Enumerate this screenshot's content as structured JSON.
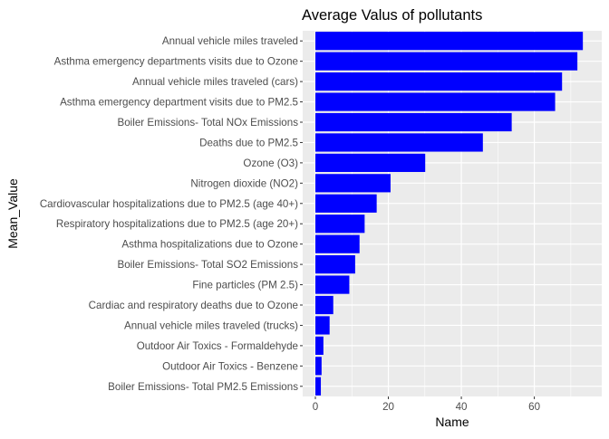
{
  "chart_data": {
    "type": "bar",
    "orientation": "horizontal",
    "title": "Average Valus of pollutants",
    "xlabel": "Name",
    "ylabel": "Mean_Value",
    "categories": [
      "Annual vehicle miles traveled",
      "Asthma emergency departments visits due to Ozone",
      "Annual vehicle miles traveled (cars)",
      "Asthma emergency department visits due to PM2.5",
      "Boiler Emissions- Total NOx Emissions",
      "Deaths due to PM2.5",
      "Ozone (O3)",
      "Nitrogen dioxide (NO2)",
      "Cardiovascular hospitalizations due to PM2.5 (age 40+)",
      "Respiratory hospitalizations due to PM2.5 (age 20+)",
      "Asthma hospitalizations due to Ozone",
      "Boiler Emissions- Total SO2 Emissions",
      "Fine particles (PM 2.5)",
      "Cardiac and respiratory deaths due to Ozone",
      "Annual vehicle miles traveled (trucks)",
      "Outdoor Air Toxics - Formaldehyde",
      "Outdoor Air Toxics - Benzene",
      "Boiler Emissions- Total PM2.5 Emissions"
    ],
    "values": [
      73.3,
      71.8,
      67.6,
      65.7,
      53.8,
      45.9,
      30.1,
      20.6,
      16.8,
      13.5,
      12.1,
      10.9,
      9.3,
      4.9,
      3.9,
      2.2,
      1.7,
      1.5
    ],
    "xlim": [
      0,
      75
    ],
    "xticks": [
      0,
      20,
      40,
      60
    ],
    "bar_color": "#0000FF",
    "panel_color": "#EBEBEB",
    "grid_color": "#FFFFFF",
    "grid": true,
    "legend": "none"
  }
}
